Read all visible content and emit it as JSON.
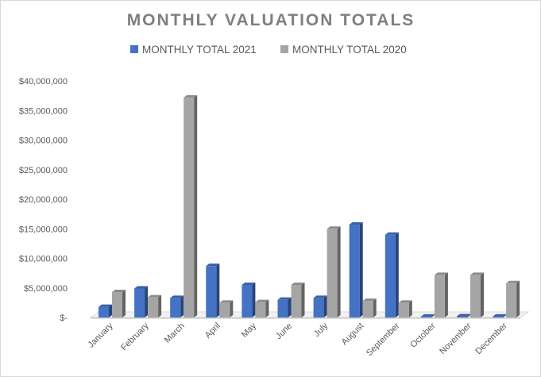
{
  "chart_data": {
    "type": "bar",
    "title": "MONTHLY VALUATION TOTALS",
    "xlabel": "",
    "ylabel": "",
    "categories": [
      "January",
      "February",
      "March",
      "April",
      "May",
      "June",
      "July",
      "August",
      "September",
      "October",
      "November",
      "December"
    ],
    "series": [
      {
        "name": "MONTHLY TOTAL 2021",
        "color": "#4472c4",
        "values": [
          1800000,
          4900000,
          3300000,
          8700000,
          5500000,
          3000000,
          3300000,
          15700000,
          14000000,
          150000,
          200000,
          150000
        ]
      },
      {
        "name": "MONTHLY TOTAL 2020",
        "color": "#a5a5a5",
        "values": [
          4300000,
          3400000,
          37200000,
          2500000,
          2600000,
          5500000,
          15000000,
          2800000,
          2500000,
          7200000,
          7200000,
          5800000
        ]
      }
    ],
    "yticks": [
      "$-",
      "$5,000,000",
      "$10,000,000",
      "$15,000,000",
      "$20,000,000",
      "$25,000,000",
      "$30,000,000",
      "$35,000,000",
      "$40,000,000"
    ],
    "ylim": [
      0,
      40000000
    ],
    "grid": false,
    "legend_position": "top",
    "style": "3d-clustered-column"
  }
}
